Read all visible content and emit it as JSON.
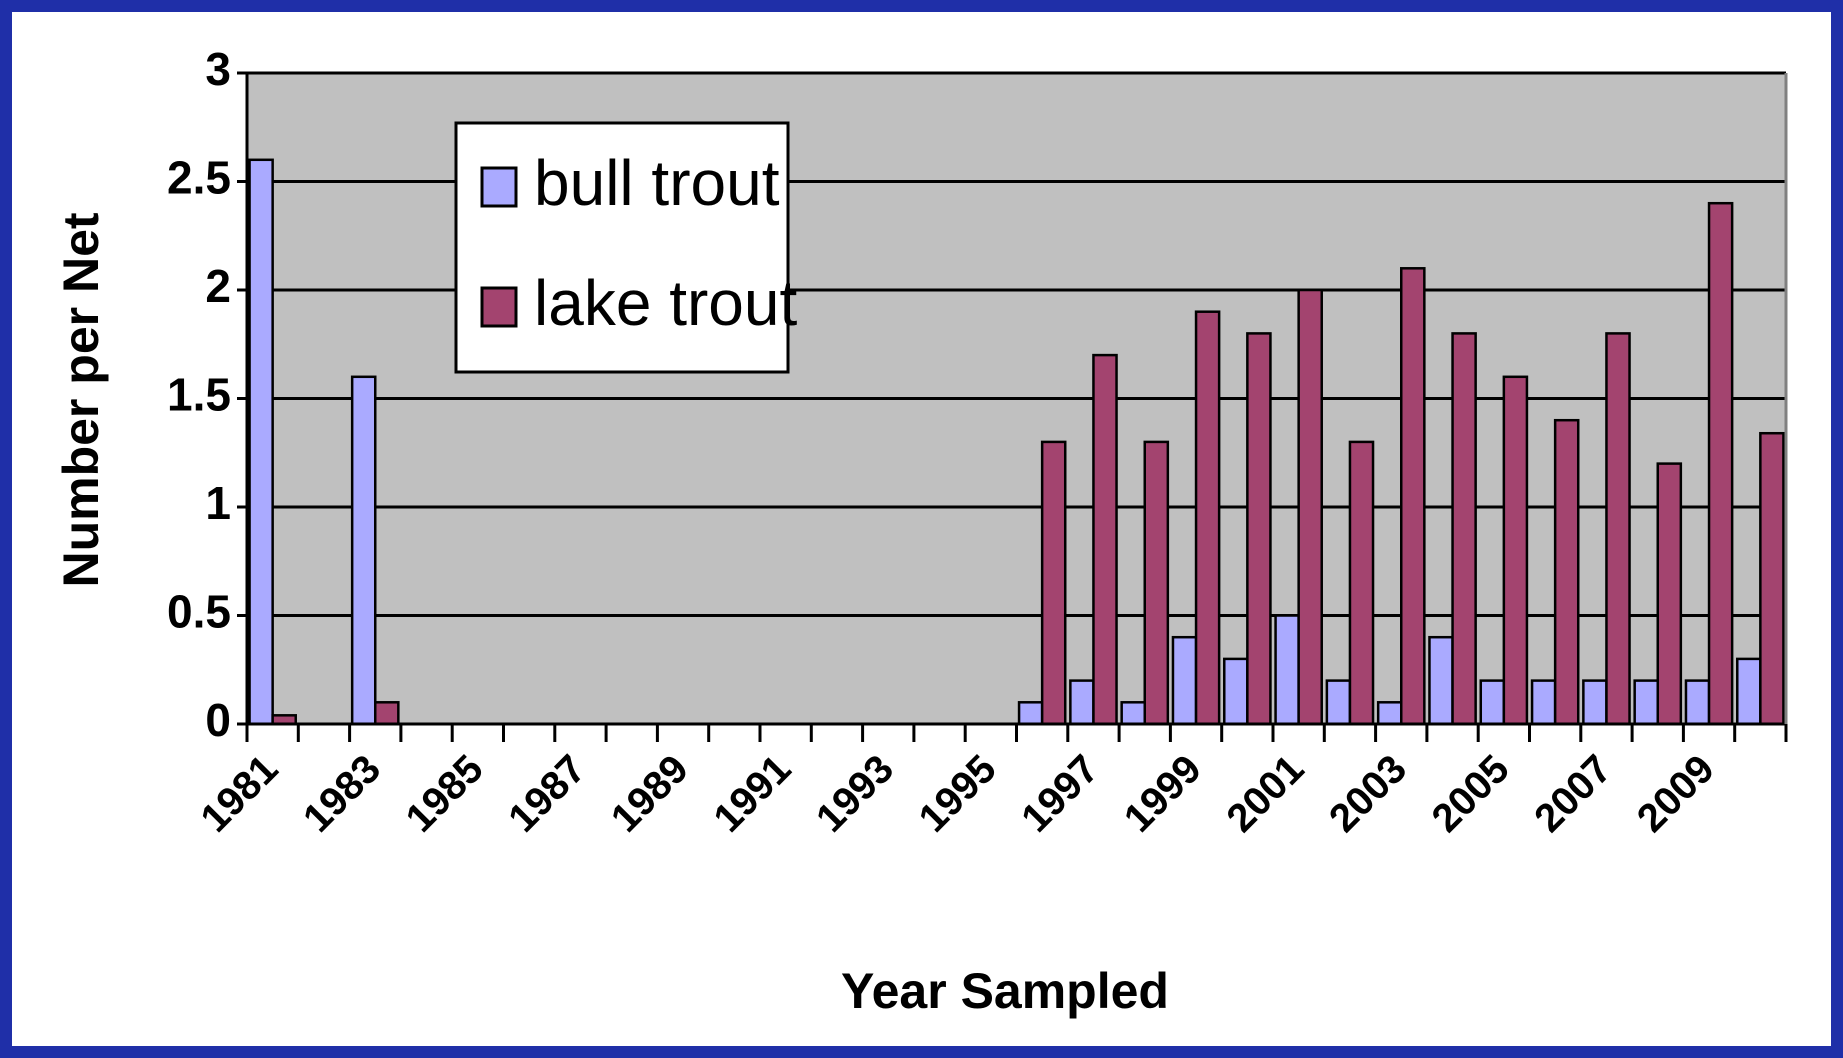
{
  "chart_data": {
    "type": "bar",
    "x_label": "Year Sampled",
    "y_label": "Number per Net",
    "categories": [
      "1981",
      null,
      "1983",
      null,
      "1985",
      null,
      "1987",
      null,
      "1989",
      null,
      "1991",
      null,
      "1993",
      null,
      "1995",
      null,
      "1997",
      null,
      "1999",
      null,
      "2001",
      null,
      "2003",
      null,
      "2005",
      null,
      "2007",
      null,
      "2009",
      null
    ],
    "series": [
      {
        "name": "bull trout",
        "color": "#aaaaff",
        "values": [
          2.6,
          null,
          1.6,
          null,
          null,
          null,
          null,
          null,
          null,
          null,
          null,
          null,
          null,
          null,
          null,
          0.1,
          0.2,
          0.1,
          0.4,
          0.3,
          0.5,
          0.2,
          0.1,
          0.4,
          0.2,
          0.2,
          0.2,
          0.2,
          0.2,
          0.3
        ]
      },
      {
        "name": "lake trout",
        "color": "#a3446f",
        "values": [
          0.04,
          null,
          0.1,
          null,
          null,
          null,
          null,
          null,
          null,
          null,
          null,
          null,
          null,
          null,
          null,
          1.3,
          1.7,
          1.3,
          1.9,
          1.8,
          2.0,
          1.3,
          2.1,
          1.8,
          1.6,
          1.4,
          1.8,
          1.2,
          2.4,
          1.34
        ]
      }
    ],
    "ylim": [
      0,
      3
    ],
    "yticks": [
      0,
      0.5,
      1,
      1.5,
      2,
      2.5,
      3
    ],
    "grid": true,
    "legend": "upper left"
  }
}
